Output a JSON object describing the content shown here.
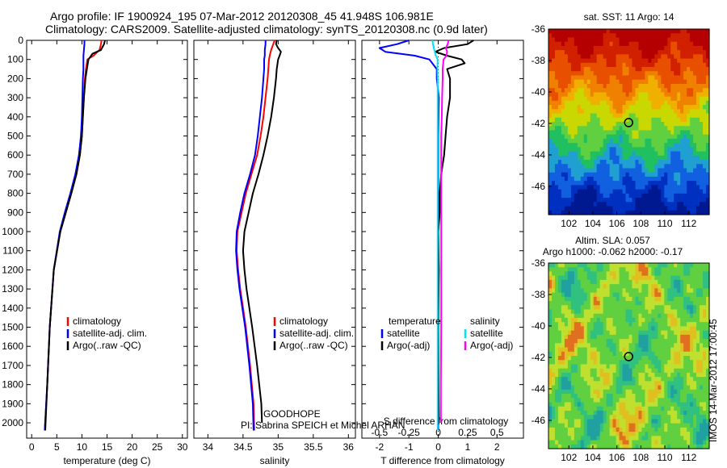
{
  "title_line1": "Argo profile: IF 1900924_195 07-Mar-2012 20120308_45 41.948S 106.981E",
  "title_line2": "Climatology: CARS2009. Satellite-adjusted climatology: synTS_20120308.nc (0.9d later)",
  "imos_stamp": "IMOS 14-Mar-2012 17:00:45",
  "colors": {
    "climatology": "#ff0000",
    "satellite": "#0000ff",
    "argo": "#000000",
    "sat_salinity": "#00e0ff",
    "argo_salinity": "#ff00ff"
  },
  "chart_data": [
    {
      "type": "line",
      "panel": "temperature",
      "xlabel": "temperature (deg C)",
      "xlim": [
        -1,
        31
      ],
      "xticks": [
        0,
        5,
        10,
        15,
        20,
        25,
        30
      ],
      "ylim": [
        0,
        2080
      ],
      "yticks": [
        0,
        100,
        200,
        300,
        400,
        500,
        600,
        700,
        800,
        900,
        1000,
        1100,
        1200,
        1300,
        1400,
        1500,
        1600,
        1700,
        1800,
        1900,
        2000
      ],
      "legend": {
        "placement": "center-left",
        "entries": [
          "climatology",
          "satellite-adj. clim.",
          "Argo(..raw -QC)"
        ]
      },
      "series": [
        {
          "name": "climatology",
          "color": "#ff0000",
          "depth": [
            0,
            20,
            50,
            80,
            100,
            150,
            200,
            300,
            400,
            500,
            600,
            700,
            800,
            900,
            1000,
            1200,
            1500,
            1800,
            2040
          ],
          "values": [
            13.9,
            13.8,
            13.5,
            12.3,
            11.1,
            10.8,
            10.6,
            10.4,
            10.2,
            10.0,
            9.6,
            8.9,
            7.9,
            6.8,
            5.7,
            4.4,
            3.6,
            3.1,
            2.6
          ]
        },
        {
          "name": "satellite-adj. clim.",
          "color": "#0000ff",
          "depth": [
            0,
            20,
            50,
            80,
            100,
            150,
            200,
            300,
            400,
            500,
            600,
            700,
            800,
            900,
            1000,
            1200,
            1500,
            1800,
            2040
          ],
          "values": [
            10.5,
            10.5,
            10.4,
            10.3,
            10.3,
            10.3,
            10.2,
            10.1,
            10.0,
            9.8,
            9.4,
            8.7,
            7.7,
            6.6,
            5.6,
            4.4,
            3.6,
            3.1,
            2.6
          ]
        },
        {
          "name": "Argo(..raw -QC)",
          "color": "#000000",
          "depth": [
            0,
            20,
            50,
            70,
            100,
            150,
            200,
            300,
            400,
            500,
            600,
            700,
            800,
            900,
            1000,
            1200,
            1500,
            1800,
            2040
          ],
          "values": [
            14.6,
            14.4,
            13.8,
            12.1,
            11.3,
            11.0,
            10.7,
            10.4,
            10.2,
            10.0,
            9.6,
            8.9,
            7.9,
            6.8,
            5.7,
            4.4,
            3.6,
            3.1,
            2.7
          ]
        }
      ]
    },
    {
      "type": "line",
      "panel": "salinity",
      "xlabel": "salinity",
      "xlim": [
        33.8,
        36.1
      ],
      "xticks": [
        34,
        34.5,
        35,
        35.5,
        36
      ],
      "xtick_labels": [
        "34",
        "34.5",
        "35",
        "35.5",
        "36"
      ],
      "ylim": [
        0,
        2080
      ],
      "legend": {
        "placement": "center-left",
        "entries": [
          "climatology",
          "satellite-adj. clim.",
          "Argo(..raw -QC)"
        ]
      },
      "annotations": [
        "GOODHOPE",
        "PI: Sabrina SPEICH et Michel ARHAN"
      ],
      "series": [
        {
          "name": "climatology",
          "color": "#ff0000",
          "depth": [
            0,
            20,
            50,
            80,
            100,
            150,
            200,
            300,
            400,
            500,
            600,
            700,
            800,
            900,
            1000,
            1100,
            1200,
            1300,
            1400,
            1500,
            1700,
            1900,
            2040
          ],
          "values": [
            34.95,
            34.93,
            34.9,
            34.88,
            34.87,
            34.86,
            34.85,
            34.82,
            34.79,
            34.75,
            34.7,
            34.62,
            34.54,
            34.48,
            34.42,
            34.41,
            34.43,
            34.46,
            34.5,
            34.54,
            34.6,
            34.65,
            34.66
          ]
        },
        {
          "name": "satellite-adj. clim.",
          "color": "#0000ff",
          "depth": [
            0,
            20,
            50,
            80,
            100,
            150,
            200,
            300,
            400,
            500,
            600,
            700,
            800,
            900,
            1000,
            1100,
            1200,
            1300,
            1400,
            1500,
            1700,
            1900,
            2040
          ],
          "values": [
            34.82,
            34.82,
            34.81,
            34.81,
            34.8,
            34.8,
            34.79,
            34.77,
            34.74,
            34.71,
            34.67,
            34.6,
            34.52,
            34.46,
            34.41,
            34.4,
            34.42,
            34.45,
            34.49,
            34.53,
            34.59,
            34.64,
            34.65
          ]
        },
        {
          "name": "Argo(..raw -QC)",
          "color": "#000000",
          "depth": [
            0,
            20,
            40,
            60,
            80,
            100,
            150,
            200,
            300,
            400,
            500,
            600,
            700,
            800,
            900,
            1000,
            1100,
            1200,
            1300,
            1400,
            1500,
            1700,
            1900,
            2000
          ],
          "values": [
            34.98,
            34.97,
            35.0,
            35.04,
            35.02,
            35.0,
            34.98,
            34.97,
            34.94,
            34.9,
            34.85,
            34.79,
            34.72,
            34.64,
            34.58,
            34.52,
            34.5,
            34.52,
            34.55,
            34.59,
            34.63,
            34.7,
            34.76,
            34.77
          ]
        }
      ]
    },
    {
      "type": "line",
      "panel": "difference",
      "xlabel": "T difference from climatology",
      "xlabel_top": "S difference from climatology",
      "xlim": [
        -2.6,
        2.9
      ],
      "xticks": [
        -2,
        -1,
        0,
        1,
        2
      ],
      "xticks_s": [
        -0.5,
        -0.25,
        0,
        0.25,
        0.5
      ],
      "xtick_labels_s": [
        "-0.5",
        "-0.25",
        "0",
        "0.25",
        "0.5"
      ],
      "ylim": [
        0,
        2080
      ],
      "legend": {
        "placement": "center",
        "groups": [
          {
            "title": "temperature",
            "entries": [
              "satellite",
              "Argo(-adj)"
            ]
          },
          {
            "title": "salinity",
            "entries": [
              "satellite",
              "Argo(-adj)"
            ]
          }
        ]
      },
      "series": [
        {
          "name": "satellite",
          "color": "#0000ff",
          "depth": [
            0,
            20,
            40,
            60,
            80,
            100,
            150,
            200,
            300,
            500,
            700,
            900,
            1200,
            1500,
            1800,
            2040
          ],
          "values": [
            -1.0,
            -1.4,
            -2.0,
            -1.8,
            -0.8,
            -0.3,
            -0.05,
            -0.05,
            0.02,
            0.0,
            0.0,
            0.0,
            0.0,
            0.0,
            0.0,
            0.0
          ]
        },
        {
          "name": "Argo(-adj)",
          "color": "#000000",
          "depth": [
            0,
            20,
            40,
            60,
            80,
            100,
            120,
            150,
            200,
            300,
            400,
            500,
            600,
            700,
            800,
            900,
            1000,
            1200,
            1500,
            1800,
            2000
          ],
          "values": [
            1.2,
            1.0,
            0.2,
            -0.1,
            0.3,
            0.8,
            0.9,
            0.3,
            0.4,
            0.4,
            0.3,
            0.25,
            0.2,
            0.1,
            0.05,
            0.05,
            0.0,
            0.02,
            0.0,
            0.01,
            0.02
          ]
        },
        {
          "name": "satellite",
          "color": "#00e0ff",
          "depth": [
            0,
            20,
            40,
            60,
            80,
            100,
            150,
            200,
            300,
            500,
            700,
            900,
            1200,
            1500,
            1800,
            2040
          ],
          "values": [
            -0.2,
            -0.18,
            -0.15,
            -0.12,
            -0.08,
            -0.02,
            -0.03,
            -0.02,
            -0.02,
            -0.02,
            -0.02,
            -0.02,
            -0.02,
            -0.02,
            -0.02,
            -0.02
          ]
        },
        {
          "name": "Argo(-adj)",
          "color": "#ff00ff",
          "depth": [
            0,
            20,
            40,
            60,
            80,
            100,
            150,
            200,
            300,
            400,
            500,
            700,
            900,
            1200,
            1500,
            1800,
            2000
          ],
          "values": [
            0.35,
            0.32,
            0.26,
            0.3,
            0.28,
            0.18,
            0.15,
            0.15,
            0.13,
            0.12,
            0.1,
            0.1,
            0.1,
            0.1,
            0.1,
            0.09,
            0.09
          ]
        }
      ]
    },
    {
      "type": "heatmap",
      "panel": "sst_map",
      "title": "sat. SST: 11 Argo: 14",
      "xlim": [
        100.3,
        113.7
      ],
      "ylim": [
        -47.8,
        -36
      ],
      "xticks": [
        102,
        104,
        106,
        108,
        110,
        112
      ],
      "yticks": [
        -36,
        -38,
        -40,
        -42,
        -44,
        -46
      ],
      "marker": {
        "lon": 106.981,
        "lat": -41.948
      }
    },
    {
      "type": "heatmap",
      "panel": "sla_map",
      "title": "Altim. SLA: 0.057",
      "subtitle": "Argo h1000: -0.062 h2000: -0.17",
      "xlim": [
        100.3,
        113.7
      ],
      "ylim": [
        -47.8,
        -36
      ],
      "xticks": [
        102,
        104,
        106,
        108,
        110,
        112
      ],
      "yticks": [
        -36,
        -38,
        -40,
        -42,
        -44,
        -46
      ],
      "marker": {
        "lon": 106.981,
        "lat": -41.948
      }
    }
  ]
}
